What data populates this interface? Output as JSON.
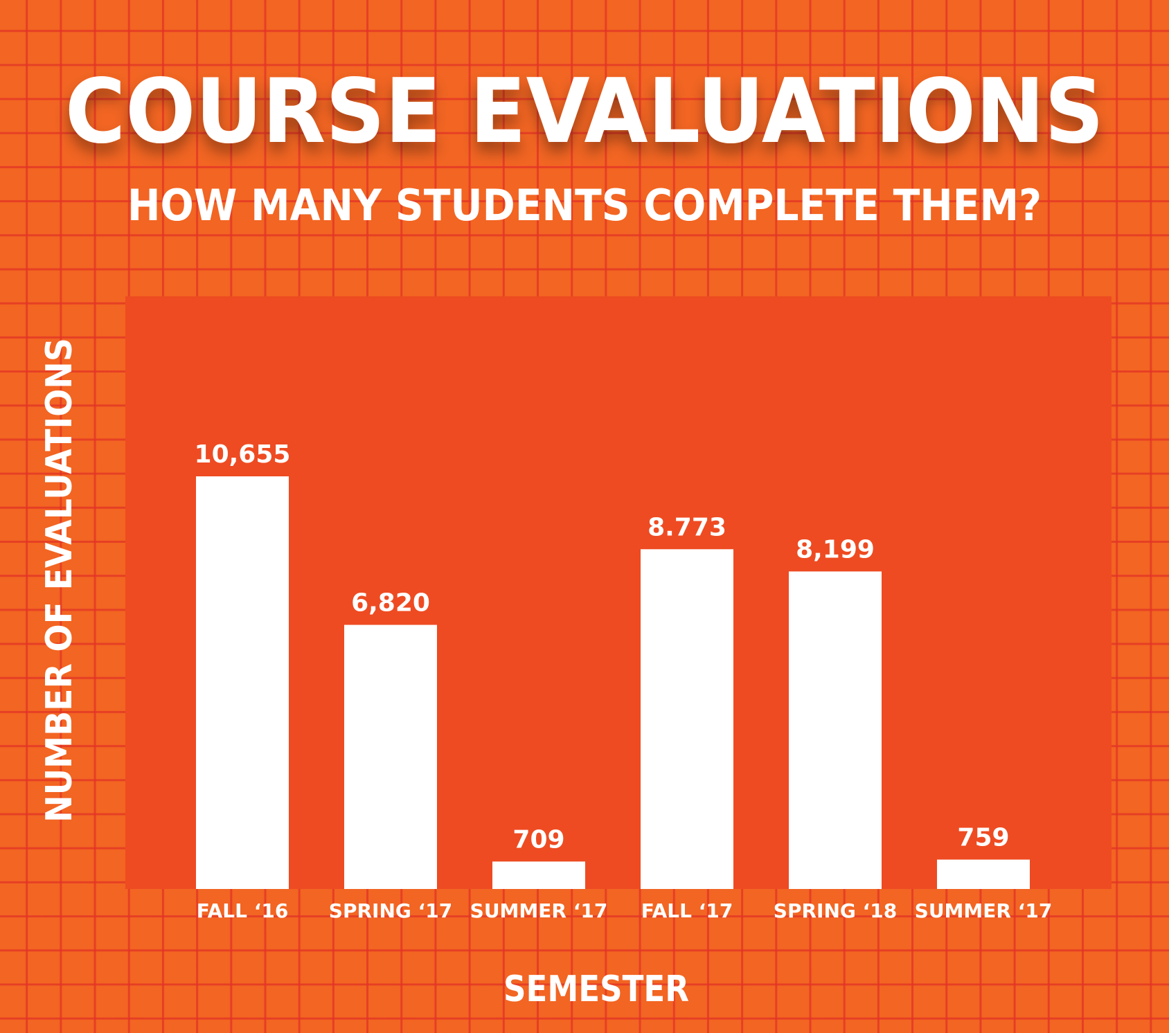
{
  "chart_data": {
    "type": "bar",
    "title": "COURSE EVALUATIONS",
    "subtitle": "HOW MANY STUDENTS COMPLETE THEM?",
    "xlabel": "SEMESTER",
    "ylabel": "NUMBER OF EVALUATIONS",
    "categories": [
      "FALL ‘16",
      "SPRING ‘17",
      "SUMMER ‘17",
      "FALL ‘17",
      "SPRING ‘18",
      "SUMMER ‘17"
    ],
    "values": [
      10655,
      6820,
      709,
      8773,
      8199,
      759
    ],
    "value_labels": [
      "10,655",
      "6,820",
      "709",
      "8.773",
      "8,199",
      "759"
    ],
    "ylim": [
      0,
      15000
    ],
    "grid": true,
    "legend": "none"
  },
  "colors": {
    "background": "#F26522",
    "grid_line": "#E23226",
    "plot_area": "#EE4B22",
    "bar": "#FFFFFF",
    "text": "#FFFFFF"
  }
}
